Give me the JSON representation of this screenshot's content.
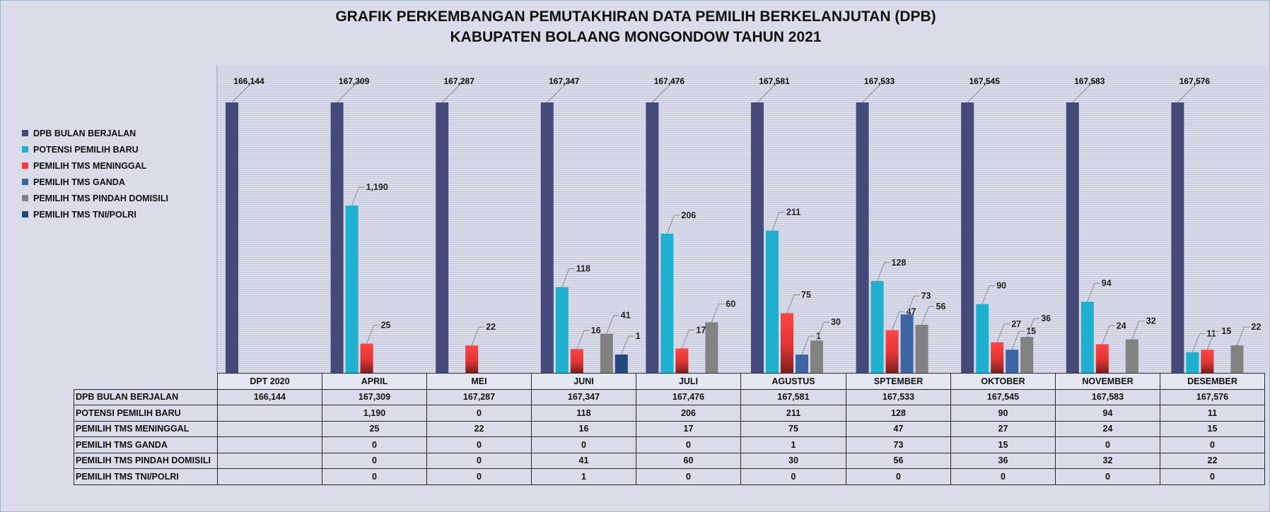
{
  "title_line1": "GRAFIK PERKEMBANGAN PEMUTAKHIRAN DATA PEMILIH BERKELANJUTAN (DPB)",
  "title_line2": "KABUPATEN BOLAANG MONGONDOW TAHUN 2021",
  "colors": {
    "dpb": "#454a7a",
    "potensi": "#1fb0cf",
    "meninggal": "#f13c3c",
    "ganda": "#3e64a3",
    "pindah": "#828282",
    "tni": "#24477e"
  },
  "chart_data": {
    "type": "bar",
    "title": "GRAFIK PERKEMBANGAN PEMUTAKHIRAN DATA PEMILIH BERKELANJUTAN (DPB) KABUPATEN BOLAANG MONGONDOW TAHUN 2021",
    "categories": [
      "DPT 2020",
      "APRIL",
      "MEI",
      "JUNI",
      "JULI",
      "AGUSTUS",
      "SPTEMBER",
      "OKTOBER",
      "NOVEMBER",
      "DESEMBER"
    ],
    "legend_position": "left",
    "series": [
      {
        "key": "dpb",
        "name": "DPB BULAN BERJALAN",
        "values": [
          166144,
          167309,
          167287,
          167347,
          167476,
          167581,
          167533,
          167545,
          167583,
          167576
        ],
        "labels": [
          "166,144",
          "167,309",
          "167,287",
          "167,347",
          "167,476",
          "167,581",
          "167,533",
          "167,545",
          "167,583",
          "167,576"
        ]
      },
      {
        "key": "potensi",
        "name": "POTENSI PEMILIH BARU",
        "values": [
          null,
          1190,
          0,
          118,
          206,
          211,
          128,
          90,
          94,
          11
        ],
        "labels": [
          "",
          "1,190",
          "0",
          "118",
          "206",
          "211",
          "128",
          "90",
          "94",
          "11"
        ]
      },
      {
        "key": "meninggal",
        "name": "PEMILIH TMS MENINGGAL",
        "values": [
          null,
          25,
          22,
          16,
          17,
          75,
          47,
          27,
          24,
          15
        ],
        "labels": [
          "",
          "25",
          "22",
          "16",
          "17",
          "75",
          "47",
          "27",
          "24",
          "15"
        ]
      },
      {
        "key": "ganda",
        "name": "PEMILIH TMS GANDA",
        "values": [
          null,
          0,
          0,
          0,
          0,
          1,
          73,
          15,
          0,
          0
        ],
        "labels": [
          "",
          "0",
          "0",
          "0",
          "0",
          "1",
          "73",
          "15",
          "0",
          "0"
        ]
      },
      {
        "key": "pindah",
        "name": "PEMILIH TMS PINDAH DOMISILI",
        "values": [
          null,
          0,
          0,
          41,
          60,
          30,
          56,
          36,
          32,
          22
        ],
        "labels": [
          "",
          "0",
          "0",
          "41",
          "60",
          "30",
          "56",
          "36",
          "32",
          "22"
        ]
      },
      {
        "key": "tni",
        "name": "PEMILIH TMS TNI/POLRI",
        "values": [
          null,
          0,
          0,
          1,
          0,
          0,
          0,
          0,
          0,
          0
        ],
        "labels": [
          "",
          "0",
          "0",
          "1",
          "0",
          "0",
          "0",
          "0",
          "0",
          "0"
        ]
      }
    ]
  }
}
